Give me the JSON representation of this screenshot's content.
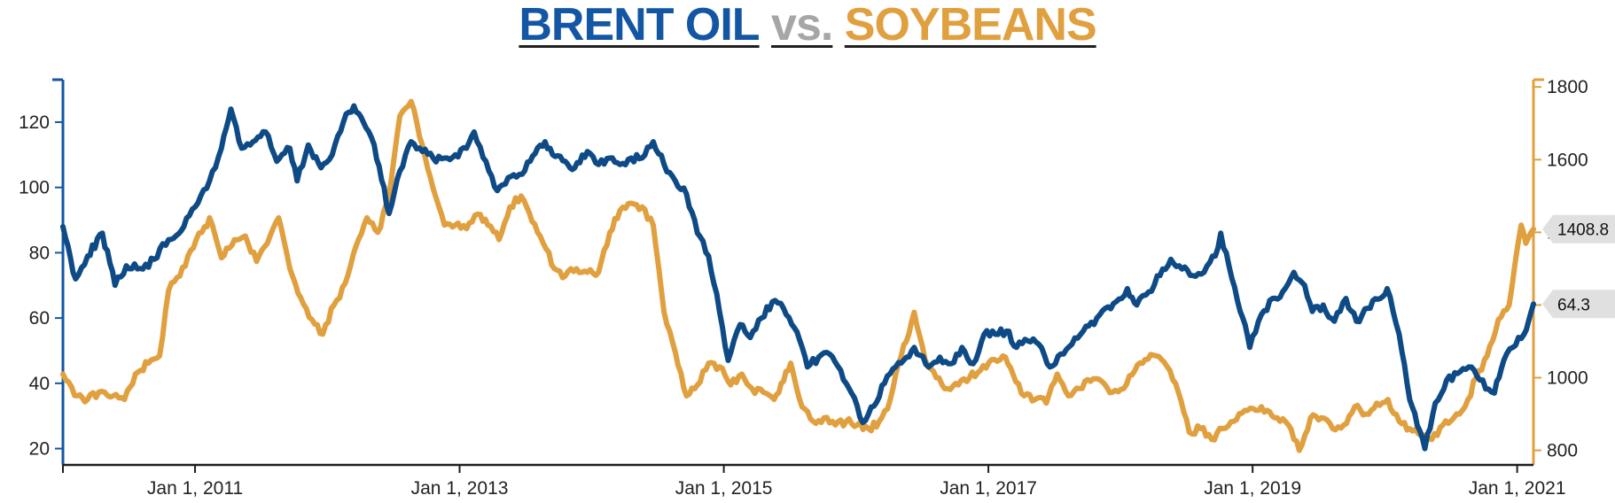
{
  "title": {
    "oil": "BRENT OIL",
    "vs": "vs.",
    "soy": "SOYBEANS"
  },
  "colors": {
    "oil": "#0d4a86",
    "soy": "#e0a03f",
    "left_axis": "#1356a3",
    "right_axis": "#e0a03f",
    "badge": "#e0e0e0"
  },
  "chart_data": {
    "type": "line",
    "title": "BRENT OIL vs. SOYBEANS",
    "xlabel": "",
    "ylabel": "",
    "xlim": [
      "2010-01-01",
      "2021-02-15"
    ],
    "y_left_lim": [
      15,
      133
    ],
    "y_right_lim": [
      760,
      1820
    ],
    "x_ticks": [
      {
        "date": "2011-01-01",
        "label": "Jan 1, 2011"
      },
      {
        "date": "2013-01-01",
        "label": "Jan 1, 2013"
      },
      {
        "date": "2015-01-01",
        "label": "Jan 1, 2015"
      },
      {
        "date": "2017-01-01",
        "label": "Jan 1, 2017"
      },
      {
        "date": "2019-01-01",
        "label": "Jan 1, 2019"
      },
      {
        "date": "2021-01-01",
        "label": "Jan 1, 2021"
      }
    ],
    "y_left_ticks": [
      20,
      40,
      60,
      80,
      100,
      120
    ],
    "y_right_ticks": [
      800,
      1000,
      1200,
      1400,
      1600,
      1800
    ],
    "grid": false,
    "legend": "none",
    "series": [
      {
        "name": "BRENT OIL",
        "axis": "left",
        "last_value_label": "64.3",
        "points": [
          [
            "2010-01-01",
            88
          ],
          [
            "2010-02-05",
            72
          ],
          [
            "2010-03-10",
            79
          ],
          [
            "2010-04-20",
            86
          ],
          [
            "2010-05-25",
            70
          ],
          [
            "2010-06-25",
            76
          ],
          [
            "2010-08-10",
            75
          ],
          [
            "2010-09-10",
            78
          ],
          [
            "2010-10-20",
            84
          ],
          [
            "2010-12-01",
            88
          ],
          [
            "2011-01-01",
            94
          ],
          [
            "2011-02-10",
            102
          ],
          [
            "2011-03-15",
            112
          ],
          [
            "2011-04-10",
            124
          ],
          [
            "2011-05-10",
            112
          ],
          [
            "2011-06-10",
            114
          ],
          [
            "2011-07-15",
            117
          ],
          [
            "2011-08-15",
            108
          ],
          [
            "2011-09-20",
            112
          ],
          [
            "2011-10-10",
            102
          ],
          [
            "2011-11-10",
            113
          ],
          [
            "2011-12-15",
            106
          ],
          [
            "2012-01-15",
            110
          ],
          [
            "2012-02-15",
            120
          ],
          [
            "2012-03-15",
            125
          ],
          [
            "2012-04-10",
            120
          ],
          [
            "2012-05-10",
            113
          ],
          [
            "2012-06-20",
            92
          ],
          [
            "2012-07-20",
            105
          ],
          [
            "2012-08-20",
            114
          ],
          [
            "2012-09-20",
            111
          ],
          [
            "2012-10-20",
            109
          ],
          [
            "2012-11-20",
            109
          ],
          [
            "2012-12-20",
            110
          ],
          [
            "2013-01-20",
            112
          ],
          [
            "2013-02-10",
            117
          ],
          [
            "2013-03-15",
            108
          ],
          [
            "2013-04-15",
            99
          ],
          [
            "2013-05-15",
            103
          ],
          [
            "2013-06-15",
            104
          ],
          [
            "2013-07-15",
            108
          ],
          [
            "2013-08-25",
            114
          ],
          [
            "2013-09-15",
            110
          ],
          [
            "2013-10-20",
            108
          ],
          [
            "2013-11-15",
            106
          ],
          [
            "2013-12-20",
            111
          ],
          [
            "2014-01-20",
            107
          ],
          [
            "2014-02-20",
            109
          ],
          [
            "2014-03-20",
            107
          ],
          [
            "2014-04-20",
            109
          ],
          [
            "2014-05-20",
            109
          ],
          [
            "2014-06-20",
            114
          ],
          [
            "2014-07-20",
            107
          ],
          [
            "2014-08-20",
            102
          ],
          [
            "2014-09-20",
            98
          ],
          [
            "2014-10-20",
            86
          ],
          [
            "2014-11-20",
            79
          ],
          [
            "2014-12-20",
            62
          ],
          [
            "2015-01-13",
            47
          ],
          [
            "2015-02-15",
            58
          ],
          [
            "2015-03-15",
            54
          ],
          [
            "2015-04-15",
            60
          ],
          [
            "2015-05-15",
            65
          ],
          [
            "2015-06-15",
            63
          ],
          [
            "2015-07-15",
            57
          ],
          [
            "2015-08-20",
            45
          ],
          [
            "2015-09-20",
            48
          ],
          [
            "2015-10-20",
            49
          ],
          [
            "2015-11-20",
            44
          ],
          [
            "2015-12-20",
            37
          ],
          [
            "2016-01-20",
            28
          ],
          [
            "2016-02-20",
            33
          ],
          [
            "2016-03-20",
            40
          ],
          [
            "2016-04-20",
            45
          ],
          [
            "2016-05-20",
            48
          ],
          [
            "2016-06-10",
            51
          ],
          [
            "2016-07-20",
            45
          ],
          [
            "2016-08-20",
            48
          ],
          [
            "2016-09-20",
            46
          ],
          [
            "2016-10-20",
            51
          ],
          [
            "2016-11-20",
            46
          ],
          [
            "2016-12-20",
            55
          ],
          [
            "2017-01-20",
            55
          ],
          [
            "2017-02-20",
            56
          ],
          [
            "2017-03-20",
            51
          ],
          [
            "2017-04-20",
            53
          ],
          [
            "2017-05-20",
            52
          ],
          [
            "2017-06-20",
            45
          ],
          [
            "2017-07-20",
            49
          ],
          [
            "2017-08-20",
            52
          ],
          [
            "2017-09-20",
            56
          ],
          [
            "2017-10-20",
            58
          ],
          [
            "2017-11-20",
            63
          ],
          [
            "2017-12-20",
            65
          ],
          [
            "2018-01-20",
            69
          ],
          [
            "2018-02-15",
            64
          ],
          [
            "2018-03-20",
            68
          ],
          [
            "2018-04-20",
            73
          ],
          [
            "2018-05-20",
            78
          ],
          [
            "2018-06-20",
            75
          ],
          [
            "2018-07-20",
            73
          ],
          [
            "2018-08-20",
            74
          ],
          [
            "2018-09-20",
            79
          ],
          [
            "2018-10-05",
            86
          ],
          [
            "2018-11-05",
            72
          ],
          [
            "2018-12-05",
            60
          ],
          [
            "2018-12-24",
            51
          ],
          [
            "2019-01-25",
            61
          ],
          [
            "2019-02-25",
            66
          ],
          [
            "2019-03-25",
            68
          ],
          [
            "2019-04-25",
            74
          ],
          [
            "2019-05-25",
            70
          ],
          [
            "2019-06-15",
            62
          ],
          [
            "2019-07-15",
            64
          ],
          [
            "2019-08-15",
            59
          ],
          [
            "2019-09-16",
            66
          ],
          [
            "2019-10-15",
            59
          ],
          [
            "2019-11-15",
            63
          ],
          [
            "2019-12-20",
            66
          ],
          [
            "2020-01-08",
            69
          ],
          [
            "2020-02-10",
            55
          ],
          [
            "2020-03-10",
            35
          ],
          [
            "2020-04-21",
            20
          ],
          [
            "2020-05-20",
            34
          ],
          [
            "2020-06-20",
            41
          ],
          [
            "2020-07-20",
            43
          ],
          [
            "2020-08-20",
            45
          ],
          [
            "2020-09-20",
            41
          ],
          [
            "2020-10-30",
            37
          ],
          [
            "2020-11-25",
            47
          ],
          [
            "2020-12-20",
            51
          ],
          [
            "2021-01-20",
            55
          ],
          [
            "2021-02-15",
            64.3
          ]
        ]
      },
      {
        "name": "SOYBEANS",
        "axis": "right",
        "last_value_label": "1408.8",
        "points": [
          [
            "2010-01-01",
            1010
          ],
          [
            "2010-02-10",
            950
          ],
          [
            "2010-03-10",
            940
          ],
          [
            "2010-04-10",
            960
          ],
          [
            "2010-05-20",
            950
          ],
          [
            "2010-06-20",
            940
          ],
          [
            "2010-07-20",
            1010
          ],
          [
            "2010-08-25",
            1040
          ],
          [
            "2010-09-25",
            1060
          ],
          [
            "2010-10-20",
            1240
          ],
          [
            "2010-11-20",
            1280
          ],
          [
            "2010-12-20",
            1350
          ],
          [
            "2011-01-20",
            1400
          ],
          [
            "2011-02-10",
            1440
          ],
          [
            "2011-03-15",
            1330
          ],
          [
            "2011-04-20",
            1380
          ],
          [
            "2011-05-20",
            1390
          ],
          [
            "2011-06-20",
            1320
          ],
          [
            "2011-07-20",
            1370
          ],
          [
            "2011-08-20",
            1440
          ],
          [
            "2011-09-20",
            1300
          ],
          [
            "2011-10-20",
            1220
          ],
          [
            "2011-11-20",
            1160
          ],
          [
            "2011-12-20",
            1120
          ],
          [
            "2012-01-20",
            1200
          ],
          [
            "2012-02-20",
            1260
          ],
          [
            "2012-03-20",
            1360
          ],
          [
            "2012-04-20",
            1440
          ],
          [
            "2012-05-20",
            1400
          ],
          [
            "2012-06-20",
            1500
          ],
          [
            "2012-07-20",
            1720
          ],
          [
            "2012-08-20",
            1760
          ],
          [
            "2012-09-20",
            1640
          ],
          [
            "2012-10-20",
            1520
          ],
          [
            "2012-11-20",
            1420
          ],
          [
            "2012-12-20",
            1420
          ],
          [
            "2013-01-20",
            1410
          ],
          [
            "2013-02-20",
            1450
          ],
          [
            "2013-03-20",
            1420
          ],
          [
            "2013-04-20",
            1380
          ],
          [
            "2013-05-20",
            1470
          ],
          [
            "2013-06-20",
            1500
          ],
          [
            "2013-07-20",
            1430
          ],
          [
            "2013-08-20",
            1370
          ],
          [
            "2013-09-20",
            1300
          ],
          [
            "2013-10-20",
            1280
          ],
          [
            "2013-11-20",
            1300
          ],
          [
            "2013-12-20",
            1290
          ],
          [
            "2014-01-20",
            1290
          ],
          [
            "2014-02-20",
            1400
          ],
          [
            "2014-03-20",
            1460
          ],
          [
            "2014-04-20",
            1480
          ],
          [
            "2014-05-20",
            1470
          ],
          [
            "2014-06-20",
            1420
          ],
          [
            "2014-07-20",
            1180
          ],
          [
            "2014-08-20",
            1070
          ],
          [
            "2014-09-20",
            950
          ],
          [
            "2014-10-20",
            980
          ],
          [
            "2014-11-20",
            1040
          ],
          [
            "2014-12-20",
            1030
          ],
          [
            "2015-01-20",
            980
          ],
          [
            "2015-02-20",
            1010
          ],
          [
            "2015-03-20",
            970
          ],
          [
            "2015-04-20",
            960
          ],
          [
            "2015-05-20",
            940
          ],
          [
            "2015-06-15",
            990
          ],
          [
            "2015-07-05",
            1040
          ],
          [
            "2015-08-05",
            920
          ],
          [
            "2015-09-05",
            880
          ],
          [
            "2015-10-05",
            890
          ],
          [
            "2015-11-05",
            870
          ],
          [
            "2015-12-05",
            880
          ],
          [
            "2016-01-05",
            870
          ],
          [
            "2016-02-05",
            860
          ],
          [
            "2016-03-05",
            880
          ],
          [
            "2016-04-05",
            940
          ],
          [
            "2016-05-05",
            1060
          ],
          [
            "2016-06-10",
            1180
          ],
          [
            "2016-07-10",
            1050
          ],
          [
            "2016-08-10",
            1000
          ],
          [
            "2016-09-10",
            970
          ],
          [
            "2016-10-10",
            980
          ],
          [
            "2016-11-10",
            1000
          ],
          [
            "2016-12-10",
            1020
          ],
          [
            "2017-01-10",
            1050
          ],
          [
            "2017-02-10",
            1060
          ],
          [
            "2017-03-10",
            1010
          ],
          [
            "2017-04-10",
            950
          ],
          [
            "2017-05-10",
            940
          ],
          [
            "2017-06-10",
            930
          ],
          [
            "2017-07-10",
            1010
          ],
          [
            "2017-08-10",
            950
          ],
          [
            "2017-09-10",
            970
          ],
          [
            "2017-10-10",
            990
          ],
          [
            "2017-11-10",
            990
          ],
          [
            "2017-12-10",
            960
          ],
          [
            "2018-01-10",
            970
          ],
          [
            "2018-02-10",
            1020
          ],
          [
            "2018-03-10",
            1050
          ],
          [
            "2018-04-10",
            1060
          ],
          [
            "2018-05-10",
            1030
          ],
          [
            "2018-06-10",
            960
          ],
          [
            "2018-07-10",
            850
          ],
          [
            "2018-08-10",
            860
          ],
          [
            "2018-09-10",
            830
          ],
          [
            "2018-10-10",
            860
          ],
          [
            "2018-11-10",
            880
          ],
          [
            "2018-12-10",
            910
          ],
          [
            "2019-01-10",
            910
          ],
          [
            "2019-02-10",
            910
          ],
          [
            "2019-03-10",
            890
          ],
          [
            "2019-04-10",
            870
          ],
          [
            "2019-05-10",
            800
          ],
          [
            "2019-06-10",
            890
          ],
          [
            "2019-07-10",
            890
          ],
          [
            "2019-08-10",
            860
          ],
          [
            "2019-09-10",
            870
          ],
          [
            "2019-10-10",
            920
          ],
          [
            "2019-11-10",
            900
          ],
          [
            "2019-12-10",
            930
          ],
          [
            "2020-01-10",
            940
          ],
          [
            "2020-02-10",
            880
          ],
          [
            "2020-03-10",
            860
          ],
          [
            "2020-04-10",
            840
          ],
          [
            "2020-05-10",
            830
          ],
          [
            "2020-06-10",
            870
          ],
          [
            "2020-07-10",
            890
          ],
          [
            "2020-08-10",
            920
          ],
          [
            "2020-09-10",
            1000
          ],
          [
            "2020-10-10",
            1060
          ],
          [
            "2020-11-10",
            1160
          ],
          [
            "2020-12-10",
            1200
          ],
          [
            "2021-01-12",
            1420
          ],
          [
            "2021-01-25",
            1370
          ],
          [
            "2021-02-15",
            1408.8
          ]
        ]
      }
    ]
  }
}
